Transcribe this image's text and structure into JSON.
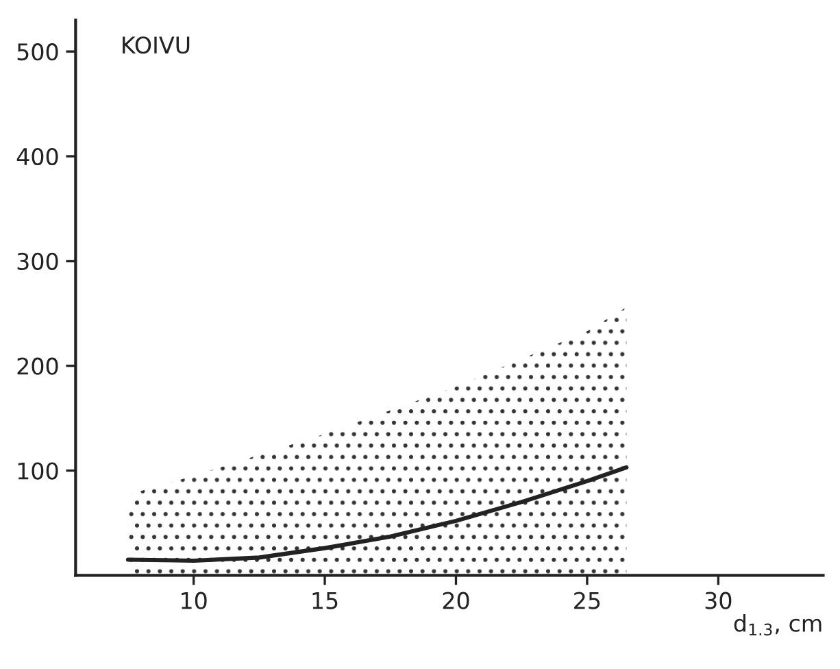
{
  "chart_data": {
    "type": "line",
    "title": "KOIVU",
    "xlabel": "d$_{1.3}$, cm",
    "series": [
      {
        "type": "area",
        "color": "#333333",
        "x": [
          7.5,
          10,
          15,
          20,
          25,
          26.5
        ],
        "values": [
          77,
          95,
          135,
          180,
          233,
          256
        ]
      },
      {
        "color": "#222222",
        "x": [
          7.5,
          10,
          12.5,
          15,
          17.5,
          20,
          22.5,
          25,
          26.5
        ],
        "values": [
          15,
          14,
          17,
          26,
          37,
          52,
          70,
          90,
          103
        ]
      }
    ],
    "xlim": [
      5.5,
      34
    ],
    "xticks": [
      10,
      15,
      20,
      25,
      30
    ],
    "ylim": [
      0,
      530
    ],
    "yticks": [
      100,
      200,
      300,
      400,
      500
    ],
    "grid": false,
    "legend": false
  }
}
